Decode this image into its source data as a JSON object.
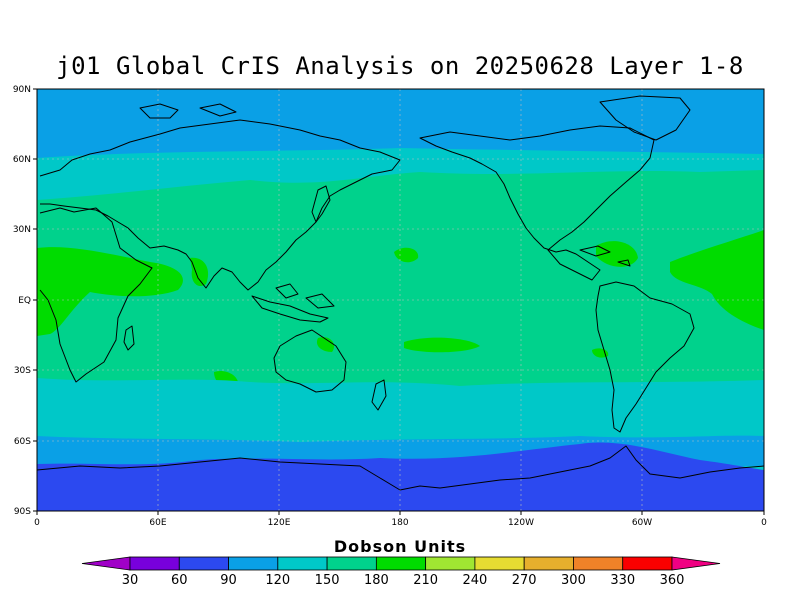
{
  "title": "j01 Global CrIS Analysis on 20250628 Layer 1-8",
  "map": {
    "lat_ticks": [
      "90N",
      "60N",
      "30N",
      "EQ",
      "30S",
      "60S",
      "90S"
    ],
    "lon_ticks": [
      "0",
      "60E",
      "120E",
      "180",
      "120W",
      "60W",
      "0"
    ],
    "band_colors": {
      "c60": "#2c49f0",
      "c90": "#0aa0e6",
      "c120": "#00c8c8",
      "c150": "#00d28c",
      "c180": "#00dc00"
    }
  },
  "colorbar": {
    "unit_label": "Dobson Units",
    "labels": [
      "30",
      "60",
      "90",
      "120",
      "150",
      "180",
      "210",
      "240",
      "270",
      "300",
      "330",
      "360"
    ],
    "colors": [
      "#a000c8",
      "#7800dc",
      "#2c49f0",
      "#0aa0e6",
      "#00c8c8",
      "#00d28c",
      "#00dc00",
      "#a0e632",
      "#e6dc32",
      "#e6af2d",
      "#f08228",
      "#fa0000",
      "#f00082"
    ]
  }
}
